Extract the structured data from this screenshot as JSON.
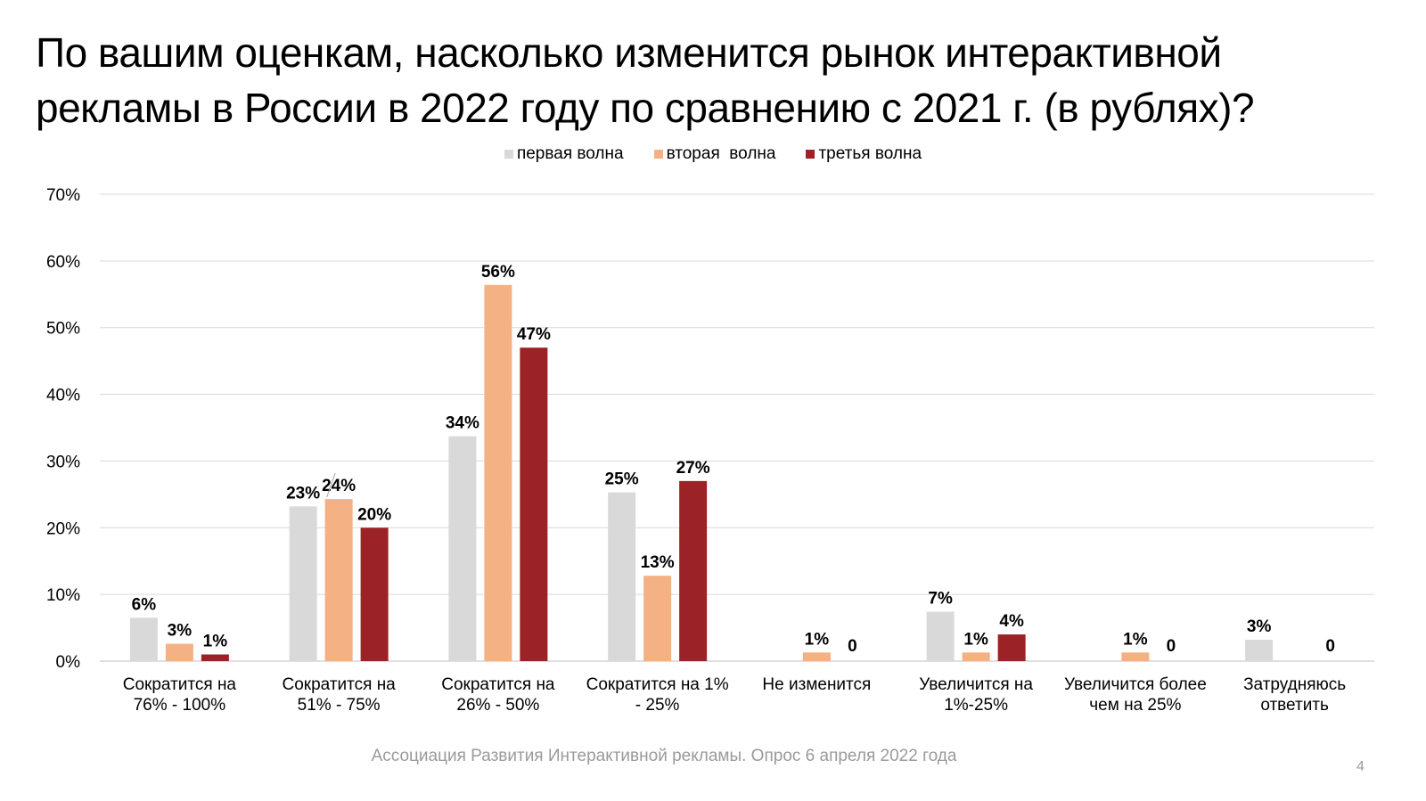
{
  "slide": {
    "title_lines": [
      "По вашим оценкам, насколько изменится рынок интерактивной",
      "рекламы в России в 2022 году по сравнению с 2021 г. (в рублях)?"
    ],
    "footer": "Ассоциация Развития Интерактивной рекламы. Опрос 6 апреля 2022 года",
    "page_number": "4"
  },
  "chart_data": {
    "type": "bar",
    "title": "По вашим оценкам, насколько изменится рынок интерактивной рекламы в России в 2022 году по сравнению с 2021 г. (в рублях)?",
    "xlabel": "",
    "ylabel": "",
    "ylim": [
      0,
      0.7
    ],
    "yticks": [
      "0%",
      "10%",
      "20%",
      "30%",
      "40%",
      "50%",
      "60%",
      "70%"
    ],
    "grid": true,
    "legend_position": "top-center",
    "categories": [
      [
        "Сократится на",
        "76% - 100%"
      ],
      [
        "Сократится на",
        "51% - 75%"
      ],
      [
        "Сократится на",
        "26% - 50%"
      ],
      [
        "Сократится на 1%",
        "- 25%"
      ],
      [
        "Не изменится"
      ],
      [
        "Увеличится на",
        "1%-25%"
      ],
      [
        "Увеличится более",
        "чем на 25%"
      ],
      [
        "Затрудняюсь",
        "ответить"
      ]
    ],
    "series": [
      {
        "name": "первая волна",
        "color": "#d9d9d9",
        "values": [
          0.065,
          0.232,
          0.337,
          0.253,
          null,
          0.074,
          null,
          0.032
        ],
        "labels": [
          "6%",
          "23%",
          "34%",
          "25%",
          null,
          "7%",
          null,
          "3%"
        ]
      },
      {
        "name": "вторая  волна",
        "color": "#f4b183",
        "values": [
          0.026,
          0.243,
          0.564,
          0.128,
          0.013,
          0.013,
          0.013,
          null
        ],
        "labels": [
          "3%",
          "24%",
          "56%",
          "13%",
          "1%",
          "1%",
          "1%",
          null
        ]
      },
      {
        "name": "третья волна",
        "color": "#9b2226",
        "values": [
          0.01,
          0.2,
          0.47,
          0.27,
          0,
          0.04,
          0,
          0
        ],
        "labels": [
          "1%",
          "20%",
          "47%",
          "27%",
          "0",
          "4%",
          "0",
          "0"
        ]
      }
    ]
  }
}
